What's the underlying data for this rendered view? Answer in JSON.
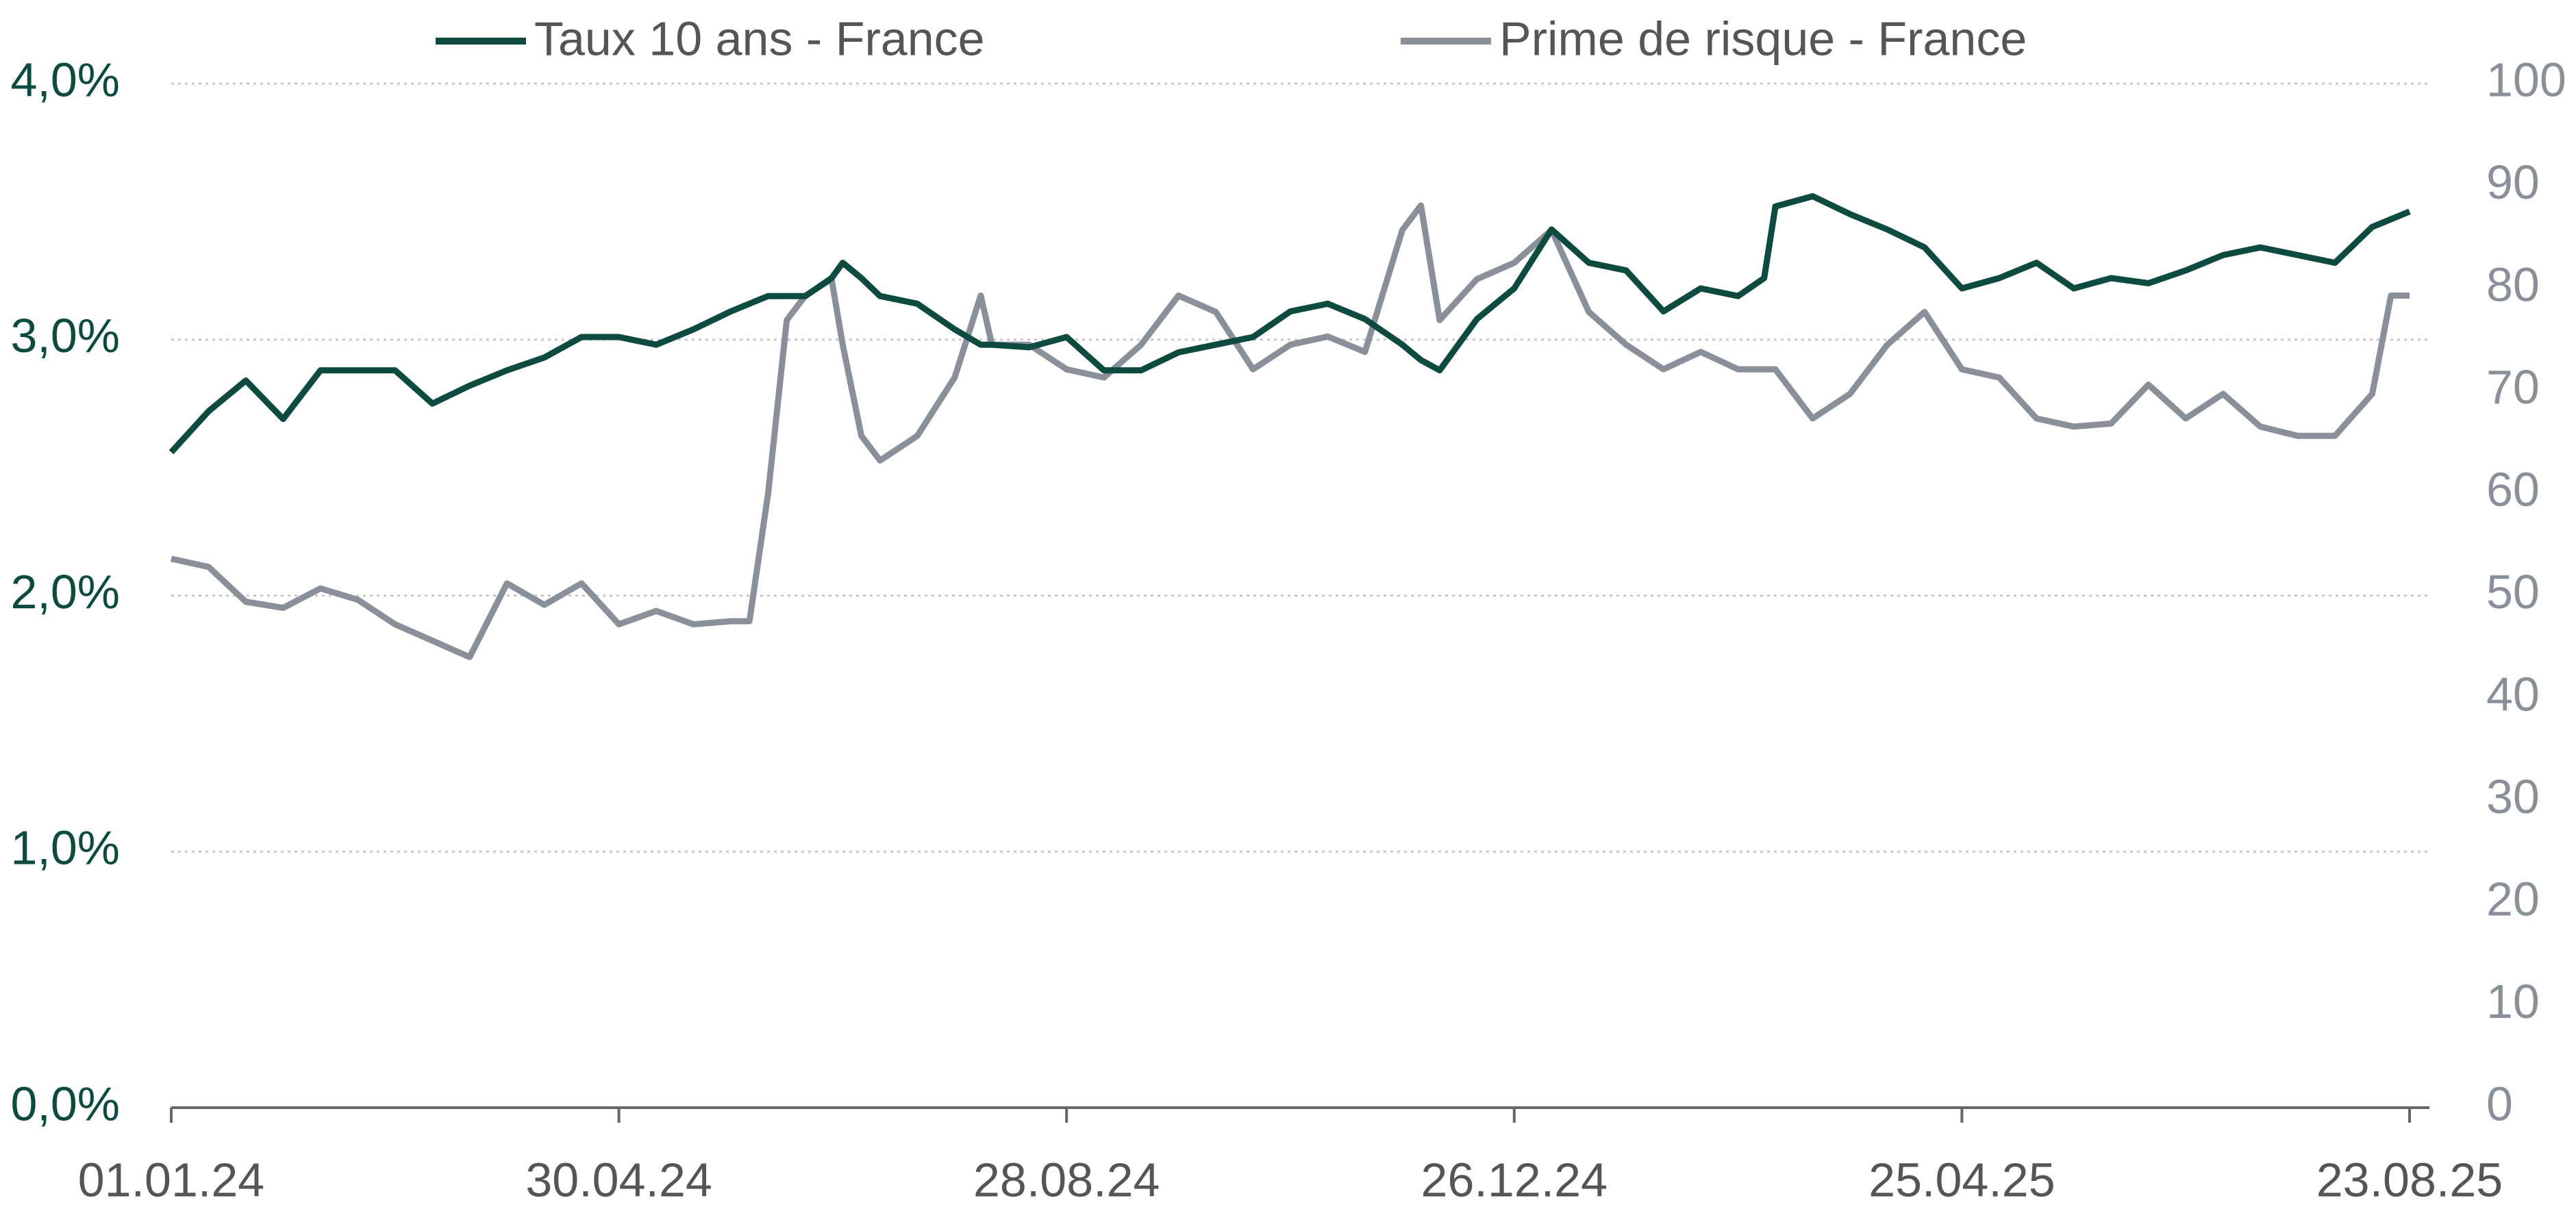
{
  "chart_data": {
    "type": "line",
    "x": [
      "01.01.24",
      "11.01.24",
      "21.01.24",
      "31.01.24",
      "10.02.24",
      "20.02.24",
      "01.03.24",
      "11.03.24",
      "21.03.24",
      "31.03.24",
      "10.04.24",
      "20.04.24",
      "30.04.24",
      "10.05.24",
      "20.05.24",
      "30.05.24",
      "04.06.24",
      "09.06.24",
      "14.06.24",
      "19.06.24",
      "26.06.24",
      "29.06.24",
      "04.07.24",
      "09.07.24",
      "19.07.24",
      "29.07.24",
      "05.08.24",
      "08.08.24",
      "18.08.24",
      "28.08.24",
      "07.09.24",
      "17.09.24",
      "27.09.24",
      "07.10.24",
      "17.10.24",
      "27.10.24",
      "06.11.24",
      "16.11.24",
      "26.11.24",
      "01.12.24",
      "06.12.24",
      "16.12.24",
      "26.12.24",
      "05.01.25",
      "15.01.25",
      "25.01.25",
      "04.02.25",
      "14.02.25",
      "24.02.25",
      "03.03.25",
      "06.03.25",
      "16.03.25",
      "26.03.25",
      "05.04.25",
      "15.04.25",
      "25.04.25",
      "05.05.25",
      "15.05.25",
      "25.05.25",
      "04.06.25",
      "14.06.25",
      "24.06.25",
      "04.07.25",
      "14.07.25",
      "24.07.25",
      "03.08.25",
      "13.08.25",
      "18.08.25",
      "23.08.25"
    ],
    "series": [
      {
        "name": "Taux 10 ans - France",
        "color": "#0d4a3f",
        "values": [
          2.56,
          2.72,
          2.84,
          2.69,
          2.88,
          2.88,
          2.88,
          2.75,
          2.82,
          2.88,
          2.93,
          3.01,
          3.01,
          2.98,
          3.04,
          3.11,
          3.14,
          3.17,
          3.17,
          3.17,
          3.24,
          3.3,
          3.24,
          3.17,
          3.14,
          3.04,
          2.98,
          2.98,
          2.97,
          3.01,
          2.88,
          2.88,
          2.95,
          2.98,
          3.01,
          3.11,
          3.14,
          3.08,
          2.98,
          2.92,
          2.88,
          3.08,
          3.2,
          3.43,
          3.3,
          3.27,
          3.11,
          3.2,
          3.17,
          3.24,
          3.52,
          3.56,
          3.49,
          3.43,
          3.36,
          3.2,
          3.24,
          3.3,
          3.2,
          3.24,
          3.22,
          3.27,
          3.33,
          3.36,
          3.33,
          3.3,
          3.44,
          3.47,
          3.5
        ]
      },
      {
        "name": "Prime de risque - France",
        "color": "#8a9099",
        "axis": "y2",
        "values": [
          53.6,
          52.8,
          49.4,
          48.8,
          50.7,
          49.6,
          47.2,
          45.6,
          44.0,
          51.2,
          49.1,
          51.2,
          47.2,
          48.5,
          47.2,
          47.5,
          47.5,
          60,
          76.9,
          79.3,
          80.9,
          74.5,
          65.6,
          63.2,
          65.6,
          71.3,
          79.3,
          74.5,
          74.5,
          72.1,
          71.3,
          74.5,
          79.3,
          77.7,
          72.1,
          74.5,
          75.3,
          73.8,
          85.7,
          88.1,
          76.9,
          80.9,
          82.5,
          85.7,
          77.7,
          74.5,
          72.1,
          73.8,
          72.1,
          72.1,
          72.1,
          67.3,
          69.7,
          74.5,
          77.7,
          72.1,
          71.3,
          67.3,
          66.5,
          66.8,
          70.6,
          67.3,
          69.7,
          66.5,
          65.6,
          65.6,
          69.7,
          79.3,
          79.3
        ]
      }
    ],
    "xticks": [
      "01.01.24",
      "30.04.24",
      "28.08.24",
      "26.12.24",
      "25.04.25",
      "23.08.25"
    ],
    "ylim": [
      0,
      4
    ],
    "yticks": [
      {
        "value": 0,
        "label": "0,0%"
      },
      {
        "value": 1,
        "label": "1,0%"
      },
      {
        "value": 2,
        "label": "2,0%"
      },
      {
        "value": 3,
        "label": "3,0%"
      },
      {
        "value": 4,
        "label": "4,0%"
      }
    ],
    "y2lim": [
      0,
      100
    ],
    "y2ticks": [
      0,
      10,
      20,
      30,
      40,
      50,
      60,
      70,
      80,
      90,
      100
    ],
    "grid": true,
    "legend": "top"
  }
}
